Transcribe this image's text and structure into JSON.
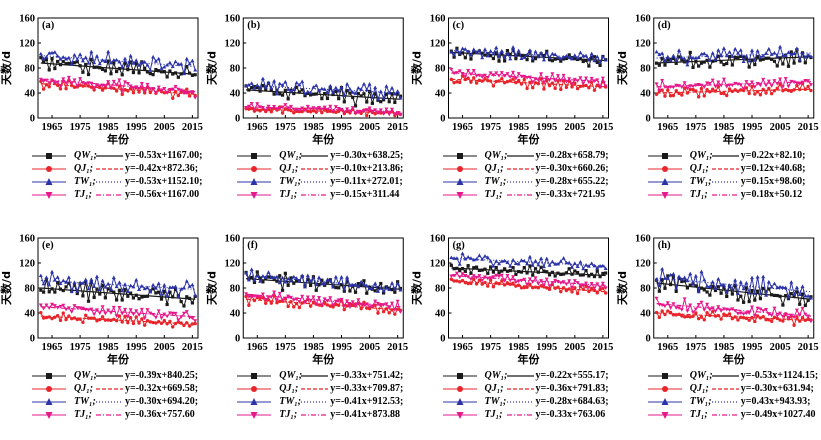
{
  "figure": {
    "ylabel": "天数/d",
    "xlabel": "年份",
    "xticks": [
      "1965",
      "1975",
      "1985",
      "1995",
      "2005",
      "2015"
    ],
    "yticks": [
      "0",
      "40",
      "80",
      "120",
      "160"
    ],
    "ylim": [
      0,
      160
    ],
    "xlim": [
      1960,
      2017
    ]
  },
  "colors": {
    "QW": "#1a1a1a",
    "QJ": "#e8252b",
    "TW": "#2b33a8",
    "TJ": "#e6198c"
  },
  "series_names": [
    "QW",
    "QJ",
    "TW",
    "TJ"
  ],
  "series_labels": {
    "QW": "QW₁",
    "QJ": "QJ₁",
    "TW": "TW₁",
    "TJ": "TJ₁"
  },
  "chart_data": [
    {
      "type": "line",
      "panel_label": "(a)",
      "xlabel": "年份",
      "ylabel": "天数/d",
      "ylim": [
        0,
        160
      ],
      "series": [
        {
          "name": "QW₁",
          "trend": "y=-0.53x+1167.00;",
          "start": 88,
          "end": 70,
          "amp": 16
        },
        {
          "name": "QJ₁",
          "trend": "y=-0.42x+872.36;",
          "start": 55,
          "end": 38,
          "amp": 10
        },
        {
          "name": "TW₁",
          "trend": "y=-0.53x+1152.10;",
          "start": 100,
          "end": 82,
          "amp": 16
        },
        {
          "name": "TJ₁",
          "trend": "y=-0.56x+1167.00",
          "start": 62,
          "end": 42,
          "amp": 10
        }
      ]
    },
    {
      "type": "line",
      "panel_label": "(b)",
      "xlabel": "年份",
      "ylabel": "天数/d",
      "ylim": [
        0,
        160
      ],
      "series": [
        {
          "name": "QW₁",
          "trend": "y=-0.30x+638.25;",
          "start": 45,
          "end": 30,
          "amp": 18
        },
        {
          "name": "QJ₁",
          "trend": "y=-0.10x+213.86;",
          "start": 14,
          "end": 8,
          "amp": 6
        },
        {
          "name": "TW₁",
          "trend": "y=-0.11x+272.01;",
          "start": 52,
          "end": 40,
          "amp": 16
        },
        {
          "name": "TJ₁",
          "trend": "y=-0.15x+311.44",
          "start": 18,
          "end": 10,
          "amp": 7
        }
      ]
    },
    {
      "type": "line",
      "panel_label": "(c)",
      "xlabel": "年份",
      "ylabel": "天数/d",
      "ylim": [
        0,
        160
      ],
      "series": [
        {
          "name": "QW₁",
          "trend": "y=-0.28x+658.79;",
          "start": 105,
          "end": 92,
          "amp": 12
        },
        {
          "name": "QJ₁",
          "trend": "y=-0.30x+660.26;",
          "start": 62,
          "end": 50,
          "amp": 9
        },
        {
          "name": "TW₁",
          "trend": "y=-0.28x+655.22;",
          "start": 108,
          "end": 95,
          "amp": 12
        },
        {
          "name": "TJ₁",
          "trend": "y=-0.33x+721.95",
          "start": 72,
          "end": 58,
          "amp": 9
        }
      ]
    },
    {
      "type": "line",
      "panel_label": "(d)",
      "xlabel": "年份",
      "ylabel": "天数/d",
      "ylim": [
        0,
        160
      ],
      "series": [
        {
          "name": "QW₁",
          "trend": "y=0.22x+82.10;",
          "start": 88,
          "end": 98,
          "amp": 16
        },
        {
          "name": "QJ₁",
          "trend": "y=0.12x+40.68;",
          "start": 40,
          "end": 46,
          "amp": 10
        },
        {
          "name": "TW₁",
          "trend": "y=0.15x+98.60;",
          "start": 96,
          "end": 104,
          "amp": 16
        },
        {
          "name": "TJ₁",
          "trend": "y=0.18x+50.12",
          "start": 50,
          "end": 58,
          "amp": 10
        }
      ]
    },
    {
      "type": "line",
      "panel_label": "(e)",
      "xlabel": "年份",
      "ylabel": "天数/d",
      "ylim": [
        0,
        160
      ],
      "series": [
        {
          "name": "QW₁",
          "trend": "y=-0.39x+840.25;",
          "start": 80,
          "end": 62,
          "amp": 18
        },
        {
          "name": "QJ₁",
          "trend": "y=-0.32x+669.58;",
          "start": 35,
          "end": 22,
          "amp": 9
        },
        {
          "name": "TW₁",
          "trend": "y=-0.30x+694.20;",
          "start": 92,
          "end": 78,
          "amp": 18
        },
        {
          "name": "TJ₁",
          "trend": "y=-0.36x+757.60",
          "start": 50,
          "end": 34,
          "amp": 10
        }
      ]
    },
    {
      "type": "line",
      "panel_label": "(f)",
      "xlabel": "年份",
      "ylabel": "天数/d",
      "ylim": [
        0,
        160
      ],
      "series": [
        {
          "name": "QW₁",
          "trend": "y=-0.33x+751.42;",
          "start": 95,
          "end": 78,
          "amp": 16
        },
        {
          "name": "QJ₁",
          "trend": "y=-0.33x+709.87;",
          "start": 62,
          "end": 45,
          "amp": 10
        },
        {
          "name": "TW₁",
          "trend": "y=-0.41x+912.53;",
          "start": 100,
          "end": 80,
          "amp": 16
        },
        {
          "name": "TJ₁",
          "trend": "y=-0.41x+873.88",
          "start": 70,
          "end": 50,
          "amp": 10
        }
      ]
    },
    {
      "type": "line",
      "panel_label": "(g)",
      "xlabel": "年份",
      "ylabel": "天数/d",
      "ylim": [
        0,
        160
      ],
      "series": [
        {
          "name": "QW₁",
          "trend": "y=-0.22x+555.17;",
          "start": 112,
          "end": 100,
          "amp": 10
        },
        {
          "name": "QJ₁",
          "trend": "y=-0.36x+791.83;",
          "start": 92,
          "end": 74,
          "amp": 8
        },
        {
          "name": "TW₁",
          "trend": "y=-0.28x+684.63;",
          "start": 128,
          "end": 115,
          "amp": 10
        },
        {
          "name": "TJ₁",
          "trend": "y=-0.33x+763.06",
          "start": 100,
          "end": 84,
          "amp": 8
        }
      ]
    },
    {
      "type": "line",
      "panel_label": "(h)",
      "xlabel": "年份",
      "ylabel": "天数/d",
      "ylim": [
        0,
        160
      ],
      "series": [
        {
          "name": "QW₁",
          "trend": "y=-0.53x+1124.15;",
          "start": 88,
          "end": 62,
          "amp": 18
        },
        {
          "name": "QJ₁",
          "trend": "y=-0.30x+631.94;",
          "start": 40,
          "end": 28,
          "amp": 10
        },
        {
          "name": "TW₁",
          "trend": "y=0.43x+943.93;",
          "start": 96,
          "end": 74,
          "amp": 18
        },
        {
          "name": "TJ₁",
          "trend": "y=-0.49x+1027.40",
          "start": 55,
          "end": 35,
          "amp": 12
        }
      ]
    }
  ]
}
